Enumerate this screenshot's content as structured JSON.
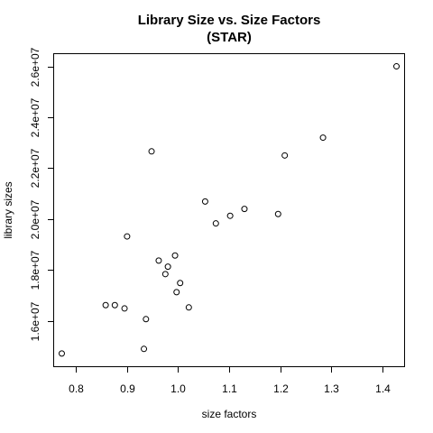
{
  "chart_data": {
    "type": "scatter",
    "title": [
      "Library Size vs. Size Factors",
      "(STAR)"
    ],
    "xlabel": "size factors",
    "ylabel": "library sizes",
    "xlim": [
      0.757,
      1.443
    ],
    "ylim": [
      14220000,
      26480000
    ],
    "xticks": [
      {
        "value": 0.8,
        "label": "0.8"
      },
      {
        "value": 0.9,
        "label": "0.9"
      },
      {
        "value": 1.0,
        "label": "1.0"
      },
      {
        "value": 1.1,
        "label": "1.1"
      },
      {
        "value": 1.2,
        "label": "1.2"
      },
      {
        "value": 1.3,
        "label": "1.3"
      },
      {
        "value": 1.4,
        "label": "1.4"
      }
    ],
    "yticks": [
      {
        "value": 16000000,
        "label": "1.6e+07"
      },
      {
        "value": 18000000,
        "label": "1.8e+07"
      },
      {
        "value": 20000000,
        "label": "2.0e+07"
      },
      {
        "value": 22000000,
        "label": "2.2e+07"
      },
      {
        "value": 24000000,
        "label": "2.4e+07"
      },
      {
        "value": 26000000,
        "label": "2.6e+07"
      }
    ],
    "grid": false,
    "points": [
      {
        "x": 0.772,
        "y": 14720000
      },
      {
        "x": 0.858,
        "y": 16620000
      },
      {
        "x": 0.876,
        "y": 16620000
      },
      {
        "x": 0.895,
        "y": 16490000
      },
      {
        "x": 0.9,
        "y": 19320000
      },
      {
        "x": 0.933,
        "y": 14900000
      },
      {
        "x": 0.937,
        "y": 16070000
      },
      {
        "x": 0.948,
        "y": 22660000
      },
      {
        "x": 0.962,
        "y": 18370000
      },
      {
        "x": 0.975,
        "y": 17840000
      },
      {
        "x": 0.98,
        "y": 18130000
      },
      {
        "x": 0.994,
        "y": 18570000
      },
      {
        "x": 0.997,
        "y": 17130000
      },
      {
        "x": 1.004,
        "y": 17490000
      },
      {
        "x": 1.021,
        "y": 16530000
      },
      {
        "x": 1.053,
        "y": 20690000
      },
      {
        "x": 1.074,
        "y": 19830000
      },
      {
        "x": 1.102,
        "y": 20130000
      },
      {
        "x": 1.13,
        "y": 20400000
      },
      {
        "x": 1.196,
        "y": 20200000
      },
      {
        "x": 1.209,
        "y": 22500000
      },
      {
        "x": 1.284,
        "y": 23200000
      },
      {
        "x": 1.428,
        "y": 26000000
      }
    ]
  }
}
